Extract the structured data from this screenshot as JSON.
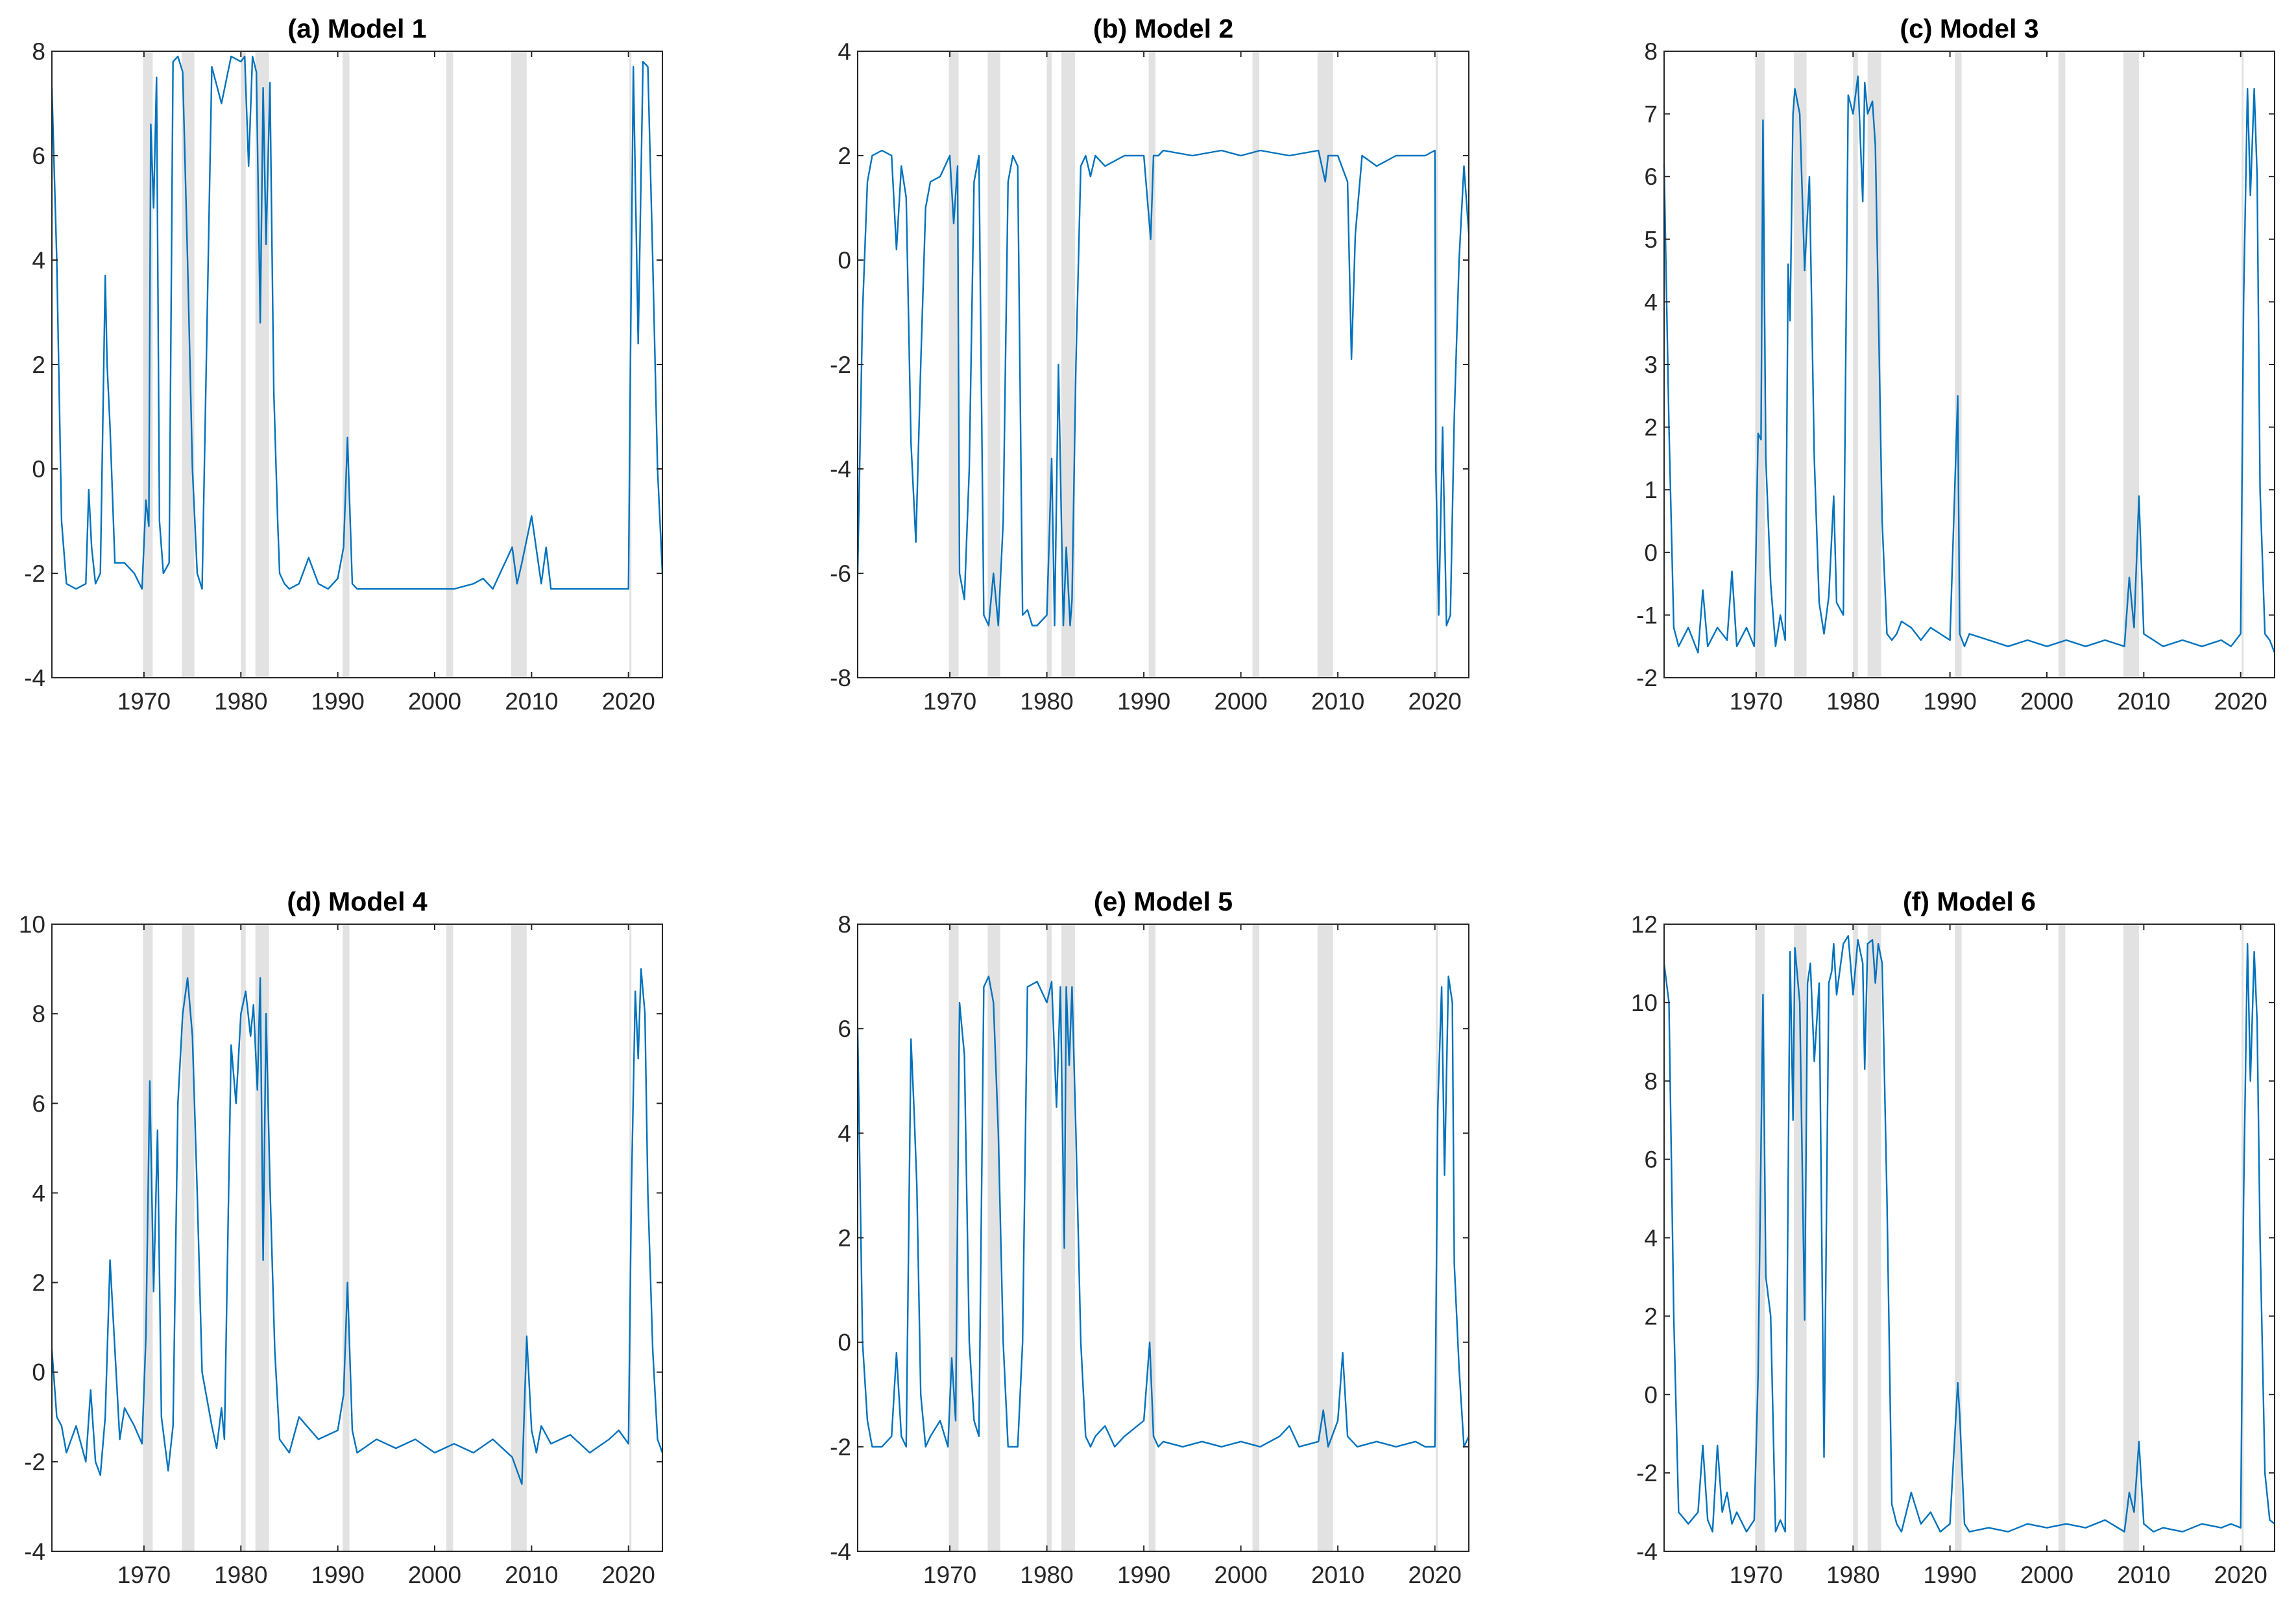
{
  "figure": {
    "series_color": "#0072bd",
    "recession_color": "#e2e2e2"
  },
  "recessions": [
    [
      1969.9,
      1970.9
    ],
    [
      1973.9,
      1975.2
    ],
    [
      1980.0,
      1980.5
    ],
    [
      1981.5,
      1982.9
    ],
    [
      1990.5,
      1991.2
    ],
    [
      2001.2,
      2001.9
    ],
    [
      2007.9,
      2009.5
    ],
    [
      2020.1,
      2020.3
    ]
  ],
  "chart_data": [
    {
      "type": "line",
      "title": "(a) Model 1",
      "xlabel": "",
      "ylabel": "",
      "xlim": [
        1960.5,
        2023.5
      ],
      "ylim": [
        -4,
        8
      ],
      "yticks": [
        -4,
        -2,
        0,
        2,
        4,
        6,
        8
      ],
      "ytick_labels": [
        "-4",
        "-2",
        "0",
        "2",
        "4",
        "6",
        "8"
      ],
      "xticks": [
        1970,
        1980,
        1990,
        2000,
        2010,
        2020
      ],
      "xtick_labels": [
        "1970",
        "1980",
        "1990",
        "2000",
        "2010",
        "2020"
      ],
      "x": [
        1960.5,
        1961,
        1961.5,
        1962,
        1963,
        1964,
        1964.3,
        1964.6,
        1965,
        1965.5,
        1966,
        1966.2,
        1966.5,
        1967,
        1968,
        1969,
        1969.8,
        1970.2,
        1970.5,
        1970.7,
        1971,
        1971.3,
        1971.6,
        1972,
        1972.6,
        1973,
        1973.5,
        1974,
        1974.5,
        1975,
        1975.5,
        1976,
        1977,
        1978,
        1979,
        1980,
        1980.4,
        1980.8,
        1981.2,
        1981.6,
        1982,
        1982.3,
        1982.6,
        1983,
        1983.4,
        1983.8,
        1984,
        1984.5,
        1985,
        1986,
        1987,
        1988,
        1989,
        1990,
        1990.6,
        1991,
        1991.5,
        1992,
        1994,
        1996,
        1998,
        2000,
        2002,
        2004,
        2005,
        2006,
        2008,
        2008.5,
        2009,
        2010,
        2011,
        2011.5,
        2012,
        2014,
        2016,
        2018,
        2019,
        2020,
        2020.2,
        2020.5,
        2021,
        2021.5,
        2022,
        2022.5,
        2023,
        2023.5
      ],
      "y": [
        7.3,
        4.0,
        -1.0,
        -2.2,
        -2.3,
        -2.2,
        -0.4,
        -1.5,
        -2.2,
        -2.0,
        3.7,
        2.0,
        0.8,
        -1.8,
        -1.8,
        -2.0,
        -2.3,
        -0.6,
        -1.1,
        6.6,
        5.0,
        7.5,
        -1.0,
        -2.0,
        -1.8,
        7.8,
        7.9,
        7.6,
        4.0,
        0.0,
        -2.0,
        -2.3,
        7.7,
        7.0,
        7.9,
        7.8,
        7.9,
        5.8,
        7.9,
        7.6,
        2.8,
        7.3,
        4.3,
        7.4,
        1.5,
        -1.0,
        -2.0,
        -2.2,
        -2.3,
        -2.2,
        -1.7,
        -2.2,
        -2.3,
        -2.1,
        -1.5,
        0.6,
        -2.2,
        -2.3,
        -2.3,
        -2.3,
        -2.3,
        -2.3,
        -2.3,
        -2.2,
        -2.1,
        -2.3,
        -1.5,
        -2.2,
        -1.8,
        -0.9,
        -2.2,
        -1.5,
        -2.3,
        -2.3,
        -2.3,
        -2.3,
        -2.3,
        -2.3,
        2.0,
        7.7,
        2.4,
        7.8,
        7.7,
        4.0,
        0.0,
        -2.0
      ]
    },
    {
      "type": "line",
      "title": "(b) Model 2",
      "xlabel": "",
      "ylabel": "",
      "xlim": [
        1960.5,
        2023.5
      ],
      "ylim": [
        -8,
        4
      ],
      "yticks": [
        -8,
        -6,
        -4,
        -2,
        0,
        2,
        4
      ],
      "ytick_labels": [
        "-8",
        "-6",
        "-4",
        "-2",
        "0",
        "2",
        "4"
      ],
      "xticks": [
        1970,
        1980,
        1990,
        2000,
        2010,
        2020
      ],
      "xtick_labels": [
        "1970",
        "1980",
        "1990",
        "2000",
        "2010",
        "2020"
      ],
      "x": [
        1960.5,
        1961,
        1961.5,
        1962,
        1963,
        1964,
        1964.5,
        1965,
        1965.5,
        1966,
        1966.5,
        1967,
        1967.5,
        1968,
        1969,
        1970,
        1970.4,
        1970.8,
        1971,
        1971.5,
        1972,
        1972.5,
        1973,
        1973.5,
        1974,
        1974.5,
        1975,
        1975.5,
        1976,
        1976.5,
        1977,
        1977.5,
        1978,
        1978.5,
        1979,
        1980,
        1980.5,
        1980.8,
        1981.2,
        1981.7,
        1982,
        1982.4,
        1982.6,
        1983,
        1983.5,
        1984,
        1984.5,
        1985,
        1986,
        1988,
        1990,
        1990.7,
        1991,
        1991.5,
        1992,
        1995,
        1998,
        2000,
        2002,
        2005,
        2008,
        2008.7,
        2009,
        2010,
        2011,
        2011.4,
        2011.8,
        2012.5,
        2014,
        2016,
        2018,
        2019,
        2020,
        2020.1,
        2020.4,
        2020.8,
        2021.2,
        2021.6,
        2022,
        2022.5,
        2023,
        2023.5
      ],
      "y": [
        -6.0,
        -1.0,
        1.5,
        2.0,
        2.1,
        2.0,
        0.2,
        1.8,
        1.2,
        -3.5,
        -5.4,
        -2.0,
        1.0,
        1.5,
        1.6,
        2.0,
        0.7,
        1.8,
        -6.0,
        -6.5,
        -4.0,
        1.5,
        2.0,
        -6.8,
        -7.0,
        -6.0,
        -7.0,
        -5.0,
        1.5,
        2.0,
        1.8,
        -6.8,
        -6.7,
        -7.0,
        -7.0,
        -6.8,
        -3.8,
        -7.0,
        -2.0,
        -7.0,
        -5.5,
        -7.0,
        -6.5,
        -2.0,
        1.8,
        2.0,
        1.6,
        2.0,
        1.8,
        2.0,
        2.0,
        0.4,
        2.0,
        2.0,
        2.1,
        2.0,
        2.1,
        2.0,
        2.1,
        2.0,
        2.1,
        1.5,
        2.0,
        2.0,
        1.5,
        -1.9,
        0.5,
        2.0,
        1.8,
        2.0,
        2.0,
        2.0,
        2.1,
        -4.0,
        -6.8,
        -3.2,
        -7.0,
        -6.8,
        -3.0,
        0.0,
        1.8,
        0.5
      ]
    },
    {
      "type": "line",
      "title": "(c) Model 3",
      "xlabel": "",
      "ylabel": "",
      "xlim": [
        1960.5,
        2023.5
      ],
      "ylim": [
        -2,
        8
      ],
      "yticks": [
        -2,
        -1,
        0,
        1,
        2,
        3,
        4,
        5,
        6,
        7,
        8
      ],
      "ytick_labels": [
        "-2",
        "-1",
        "0",
        "1",
        "2",
        "3",
        "4",
        "5",
        "6",
        "7",
        "8"
      ],
      "xticks": [
        1970,
        1980,
        1990,
        2000,
        2010,
        2020
      ],
      "xtick_labels": [
        "1970",
        "1980",
        "1990",
        "2000",
        "2010",
        "2020"
      ],
      "x": [
        1960.5,
        1961,
        1961.5,
        1962,
        1963,
        1964,
        1964.5,
        1965,
        1966,
        1967,
        1967.5,
        1968,
        1969,
        1969.8,
        1970.2,
        1970.5,
        1970.7,
        1971,
        1971.5,
        1972,
        1972.5,
        1973,
        1973.3,
        1973.5,
        1973.8,
        1974,
        1974.5,
        1975,
        1975.5,
        1976,
        1976.5,
        1977,
        1977.5,
        1978,
        1978.3,
        1979,
        1979.5,
        1980,
        1980.5,
        1981,
        1981.2,
        1981.5,
        1982,
        1982.3,
        1982.6,
        1983,
        1983.5,
        1984,
        1984.5,
        1985,
        1986,
        1987,
        1988,
        1989,
        1990,
        1990.8,
        1991,
        1991.5,
        1992,
        1994,
        1996,
        1998,
        2000,
        2002,
        2004,
        2006,
        2008,
        2008.5,
        2009,
        2009.5,
        2010,
        2011,
        2012,
        2014,
        2016,
        2018,
        2019,
        2020,
        2020.3,
        2020.7,
        2021,
        2021.4,
        2021.7,
        2022,
        2022.5,
        2023,
        2023.5
      ],
      "y": [
        6.2,
        2.0,
        -1.2,
        -1.5,
        -1.2,
        -1.6,
        -0.6,
        -1.5,
        -1.2,
        -1.4,
        -0.3,
        -1.5,
        -1.2,
        -1.5,
        1.9,
        1.8,
        6.9,
        1.5,
        -0.5,
        -1.5,
        -1.0,
        -1.4,
        4.6,
        3.7,
        7.0,
        7.4,
        7.0,
        4.5,
        6.0,
        1.5,
        -0.8,
        -1.3,
        -0.7,
        0.9,
        -0.8,
        -1.0,
        7.3,
        7.0,
        7.6,
        5.6,
        7.5,
        7.0,
        7.2,
        6.5,
        4.0,
        0.5,
        -1.3,
        -1.4,
        -1.3,
        -1.1,
        -1.2,
        -1.4,
        -1.2,
        -1.3,
        -1.4,
        2.5,
        -1.3,
        -1.5,
        -1.3,
        -1.4,
        -1.5,
        -1.4,
        -1.5,
        -1.4,
        -1.5,
        -1.4,
        -1.5,
        -0.4,
        -1.2,
        0.9,
        -1.3,
        -1.4,
        -1.5,
        -1.4,
        -1.5,
        -1.4,
        -1.5,
        -1.3,
        4.0,
        7.4,
        5.7,
        7.4,
        6.0,
        1.0,
        -1.3,
        -1.4,
        -1.6
      ]
    },
    {
      "type": "line",
      "title": "(d) Model 4",
      "xlabel": "",
      "ylabel": "",
      "xlim": [
        1960.5,
        2023.5
      ],
      "ylim": [
        -4,
        10
      ],
      "yticks": [
        -4,
        -2,
        0,
        2,
        4,
        6,
        8,
        10
      ],
      "ytick_labels": [
        "-4",
        "-2",
        "0",
        "2",
        "4",
        "6",
        "8",
        "10"
      ],
      "xticks": [
        1970,
        1980,
        1990,
        2000,
        2010,
        2020
      ],
      "xtick_labels": [
        "1970",
        "1980",
        "1990",
        "2000",
        "2010",
        "2020"
      ],
      "x": [
        1960.5,
        1961,
        1961.5,
        1962,
        1963,
        1964,
        1964.5,
        1965,
        1965.5,
        1966,
        1966.5,
        1967,
        1967.5,
        1968,
        1969,
        1969.8,
        1970.2,
        1970.6,
        1971,
        1971.4,
        1971.8,
        1972.5,
        1973,
        1973.5,
        1974,
        1974.5,
        1975,
        1975.5,
        1976,
        1977,
        1977.5,
        1978,
        1978.3,
        1979,
        1979.5,
        1980,
        1980.5,
        1981,
        1981.3,
        1981.7,
        1982,
        1982.3,
        1982.6,
        1983,
        1983.5,
        1984,
        1985,
        1986,
        1988,
        1990,
        1990.6,
        1991,
        1991.5,
        1992,
        1994,
        1996,
        1998,
        2000,
        2002,
        2004,
        2006,
        2008,
        2009,
        2009.5,
        2010,
        2010.5,
        2011,
        2012,
        2014,
        2016,
        2018,
        2019,
        2020,
        2020.3,
        2020.7,
        2021,
        2021.3,
        2021.7,
        2022,
        2022.5,
        2023,
        2023.5
      ],
      "y": [
        0.5,
        -1.0,
        -1.2,
        -1.8,
        -1.2,
        -2.0,
        -0.4,
        -2.0,
        -2.3,
        -1.0,
        2.5,
        0.5,
        -1.5,
        -0.8,
        -1.2,
        -1.6,
        0.8,
        6.5,
        1.8,
        5.4,
        -1.0,
        -2.2,
        -1.2,
        6.0,
        8.0,
        8.8,
        7.5,
        4.0,
        0.0,
        -1.2,
        -1.7,
        -0.8,
        -1.5,
        7.3,
        6.0,
        8.0,
        8.5,
        7.5,
        8.2,
        6.3,
        8.8,
        2.5,
        8.0,
        4.2,
        0.5,
        -1.5,
        -1.8,
        -1.0,
        -1.5,
        -1.3,
        -0.5,
        2.0,
        -1.3,
        -1.8,
        -1.5,
        -1.7,
        -1.5,
        -1.8,
        -1.6,
        -1.8,
        -1.5,
        -1.9,
        -2.5,
        0.8,
        -1.3,
        -1.8,
        -1.2,
        -1.6,
        -1.4,
        -1.8,
        -1.5,
        -1.3,
        -1.6,
        4.0,
        8.5,
        7.0,
        9.0,
        8.0,
        4.0,
        0.5,
        -1.5,
        -1.8
      ]
    },
    {
      "type": "line",
      "title": "(e) Model 5",
      "xlabel": "",
      "ylabel": "",
      "xlim": [
        1960.5,
        2023.5
      ],
      "ylim": [
        -4,
        8
      ],
      "yticks": [
        -4,
        -2,
        0,
        2,
        4,
        6,
        8
      ],
      "ytick_labels": [
        "-4",
        "-2",
        "0",
        "2",
        "4",
        "6",
        "8"
      ],
      "xticks": [
        1970,
        1980,
        1990,
        2000,
        2010,
        2020
      ],
      "xtick_labels": [
        "1970",
        "1980",
        "1990",
        "2000",
        "2010",
        "2020"
      ],
      "x": [
        1960.5,
        1961,
        1961.5,
        1962,
        1963,
        1964,
        1964.5,
        1965,
        1965.5,
        1966,
        1966.3,
        1966.6,
        1967,
        1967.5,
        1968,
        1969,
        1969.8,
        1970.2,
        1970.6,
        1971,
        1971.5,
        1972,
        1972.5,
        1973,
        1973.5,
        1974,
        1974.5,
        1975,
        1975.5,
        1976,
        1977,
        1977.5,
        1978,
        1979,
        1980,
        1980.5,
        1981,
        1981.4,
        1981.8,
        1982,
        1982.3,
        1982.6,
        1983,
        1983.5,
        1984,
        1984.5,
        1985,
        1986,
        1987,
        1988,
        1990,
        1990.6,
        1991,
        1991.5,
        1992,
        1994,
        1996,
        1998,
        2000,
        2002,
        2004,
        2005,
        2006,
        2008,
        2008.5,
        2009,
        2010,
        2010.5,
        2011,
        2012,
        2014,
        2016,
        2018,
        2019,
        2020,
        2020.3,
        2020.7,
        2021,
        2021.4,
        2021.8,
        2022,
        2022.5,
        2023,
        2023.5
      ],
      "y": [
        6.0,
        0.0,
        -1.5,
        -2.0,
        -2.0,
        -1.8,
        -0.2,
        -1.8,
        -2.0,
        5.8,
        4.5,
        3.0,
        -1.0,
        -2.0,
        -1.8,
        -1.5,
        -2.0,
        -0.3,
        -1.5,
        6.5,
        5.5,
        0.0,
        -1.5,
        -1.8,
        6.8,
        7.0,
        6.5,
        4.0,
        0.0,
        -2.0,
        -2.0,
        0.0,
        6.8,
        6.9,
        6.5,
        6.9,
        4.5,
        6.8,
        1.8,
        6.8,
        5.3,
        6.8,
        4.0,
        0.0,
        -1.8,
        -2.0,
        -1.8,
        -1.6,
        -2.0,
        -1.8,
        -1.5,
        0.0,
        -1.8,
        -2.0,
        -1.9,
        -2.0,
        -1.9,
        -2.0,
        -1.9,
        -2.0,
        -1.8,
        -1.6,
        -2.0,
        -1.9,
        -1.3,
        -2.0,
        -1.5,
        -0.2,
        -1.8,
        -2.0,
        -1.9,
        -2.0,
        -1.9,
        -2.0,
        -2.0,
        4.5,
        6.8,
        3.2,
        7.0,
        6.5,
        1.5,
        -0.5,
        -2.0,
        -1.8
      ]
    },
    {
      "type": "line",
      "title": "(f) Model 6",
      "xlabel": "",
      "ylabel": "",
      "xlim": [
        1960.5,
        2023.5
      ],
      "ylim": [
        -4,
        12
      ],
      "yticks": [
        -4,
        -2,
        0,
        2,
        4,
        6,
        8,
        10,
        12
      ],
      "ytick_labels": [
        "-4",
        "-2",
        "0",
        "2",
        "4",
        "6",
        "8",
        "10",
        "12"
      ],
      "xticks": [
        1970,
        1980,
        1990,
        2000,
        2010,
        2020
      ],
      "xtick_labels": [
        "1970",
        "1980",
        "1990",
        "2000",
        "2010",
        "2020"
      ],
      "x": [
        1960.5,
        1961,
        1961.5,
        1962,
        1963,
        1964,
        1964.5,
        1965,
        1965.5,
        1966,
        1966.5,
        1967,
        1967.5,
        1968,
        1969,
        1969.8,
        1970.2,
        1970.7,
        1971,
        1971.5,
        1972,
        1972.5,
        1973,
        1973.5,
        1973.8,
        1974,
        1974.5,
        1975,
        1975.3,
        1975.6,
        1976,
        1976.5,
        1977,
        1977.5,
        1977.8,
        1978,
        1978.3,
        1979,
        1979.5,
        1980,
        1980.5,
        1981,
        1981.2,
        1981.5,
        1982,
        1982.3,
        1982.6,
        1983,
        1983.5,
        1984,
        1984.5,
        1985,
        1986,
        1987,
        1988,
        1989,
        1990,
        1990.8,
        1991,
        1991.5,
        1992,
        1994,
        1996,
        1998,
        2000,
        2002,
        2004,
        2006,
        2008,
        2008.5,
        2009,
        2009.5,
        2010,
        2011,
        2012,
        2014,
        2016,
        2018,
        2019,
        2020,
        2020.3,
        2020.7,
        2021,
        2021.4,
        2021.7,
        2022,
        2022.5,
        2023,
        2023.5
      ],
      "y": [
        11.0,
        10.0,
        2.0,
        -3.0,
        -3.3,
        -3.0,
        -1.3,
        -3.2,
        -3.5,
        -1.3,
        -3.0,
        -2.5,
        -3.3,
        -3.0,
        -3.5,
        -3.2,
        0.5,
        10.2,
        3.0,
        2.0,
        -3.5,
        -3.2,
        -3.5,
        11.3,
        7.0,
        11.4,
        10.0,
        1.9,
        10.5,
        11.0,
        8.5,
        10.5,
        -1.6,
        10.5,
        10.8,
        11.5,
        10.2,
        11.5,
        11.7,
        10.2,
        11.6,
        11.0,
        8.3,
        11.5,
        11.6,
        10.5,
        11.5,
        11.0,
        5.0,
        -2.8,
        -3.3,
        -3.5,
        -2.5,
        -3.3,
        -3.0,
        -3.5,
        -3.3,
        0.3,
        -0.5,
        -3.3,
        -3.5,
        -3.4,
        -3.5,
        -3.3,
        -3.4,
        -3.3,
        -3.4,
        -3.2,
        -3.5,
        -2.5,
        -3.0,
        -1.2,
        -3.3,
        -3.5,
        -3.4,
        -3.5,
        -3.3,
        -3.4,
        -3.3,
        -3.4,
        5.0,
        11.5,
        8.0,
        11.3,
        9.5,
        4.0,
        -2.0,
        -3.2,
        -3.3
      ]
    }
  ]
}
